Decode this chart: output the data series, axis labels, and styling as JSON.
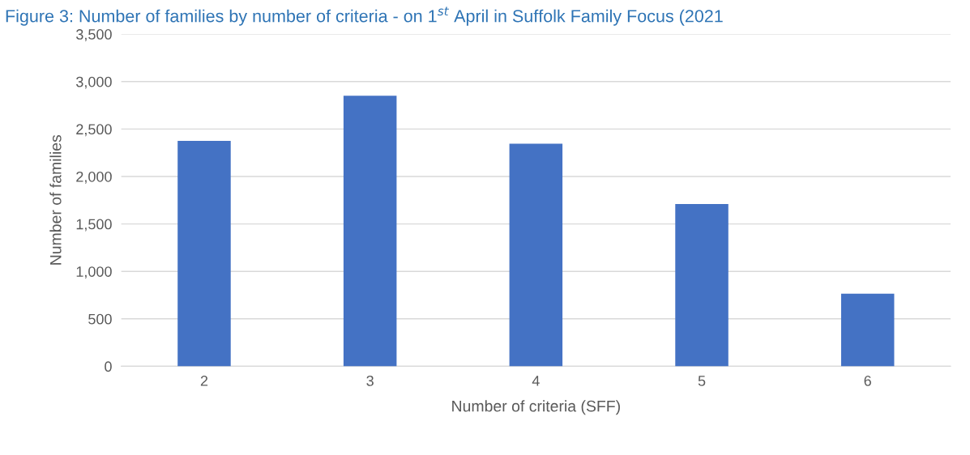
{
  "chart_data": {
    "type": "bar",
    "title": "Figure 3: Number of families by number of criteria - on 1$^{st}$ April in Suffolk Family Focus (2021",
    "xlabel": "Number of criteria (SFF)",
    "ylabel": "Number of families",
    "categories": [
      "2",
      "3",
      "4",
      "5",
      "6"
    ],
    "values": [
      2375,
      2850,
      2345,
      1710,
      765
    ],
    "color": "#4472c4",
    "ylim": [
      0,
      3500
    ],
    "yticks": [
      {
        "value": 0,
        "label": "0"
      },
      {
        "value": 500,
        "label": "500"
      },
      {
        "value": 1000,
        "label": "1,000"
      },
      {
        "value": 1500,
        "label": "1,500"
      },
      {
        "value": 2000,
        "label": "2,000"
      },
      {
        "value": 2500,
        "label": "2,500"
      },
      {
        "value": 3000,
        "label": "3,000"
      },
      {
        "value": 3500,
        "label": "3,500"
      }
    ],
    "grid": "y",
    "legend": false
  }
}
